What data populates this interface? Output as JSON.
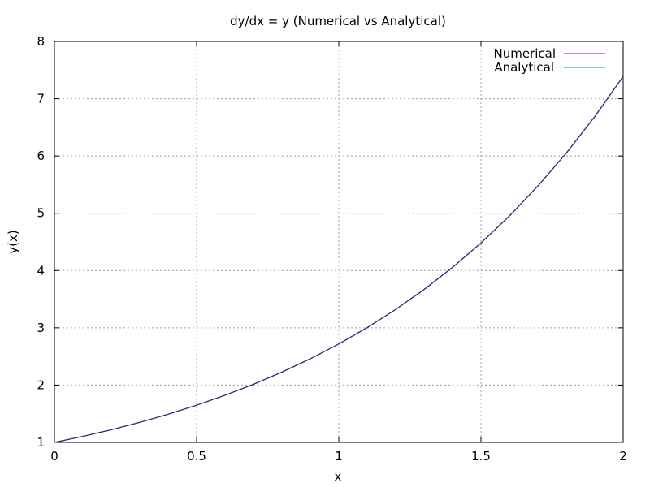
{
  "chart_data": {
    "type": "line",
    "title": "dy/dx = y (Numerical vs Analytical)",
    "xlabel": "x",
    "ylabel": "y(x)",
    "xlim": [
      0,
      2
    ],
    "ylim": [
      1,
      8
    ],
    "x_ticks": [
      0,
      0.5,
      1,
      1.5,
      2
    ],
    "x_tick_labels": [
      "0",
      "0.5",
      "1",
      "1.5",
      "2"
    ],
    "y_ticks": [
      1,
      2,
      3,
      4,
      5,
      6,
      7,
      8
    ],
    "y_tick_labels": [
      "1",
      "2",
      "3",
      "4",
      "5",
      "6",
      "7",
      "8"
    ],
    "grid": true,
    "legend_position": "top-right",
    "x": [
      0,
      0.1,
      0.2,
      0.3,
      0.4,
      0.5,
      0.6,
      0.7,
      0.8,
      0.9,
      1.0,
      1.1,
      1.2,
      1.3,
      1.4,
      1.5,
      1.6,
      1.7,
      1.8,
      1.9,
      2.0
    ],
    "series": [
      {
        "name": "Numerical",
        "color": "#9400d3",
        "values": [
          1.0,
          1.105,
          1.221,
          1.35,
          1.492,
          1.649,
          1.822,
          2.014,
          2.226,
          2.46,
          2.718,
          3.004,
          3.32,
          3.669,
          4.055,
          4.482,
          4.953,
          5.474,
          6.05,
          6.686,
          7.389
        ]
      },
      {
        "name": "Analytical",
        "color": "#009e73",
        "values": [
          1.0,
          1.105,
          1.221,
          1.35,
          1.492,
          1.649,
          1.822,
          2.014,
          2.226,
          2.46,
          2.718,
          3.004,
          3.32,
          3.669,
          4.055,
          4.482,
          4.953,
          5.474,
          6.05,
          6.686,
          7.389
        ]
      }
    ],
    "overlap_color": "#1a3a6e"
  }
}
